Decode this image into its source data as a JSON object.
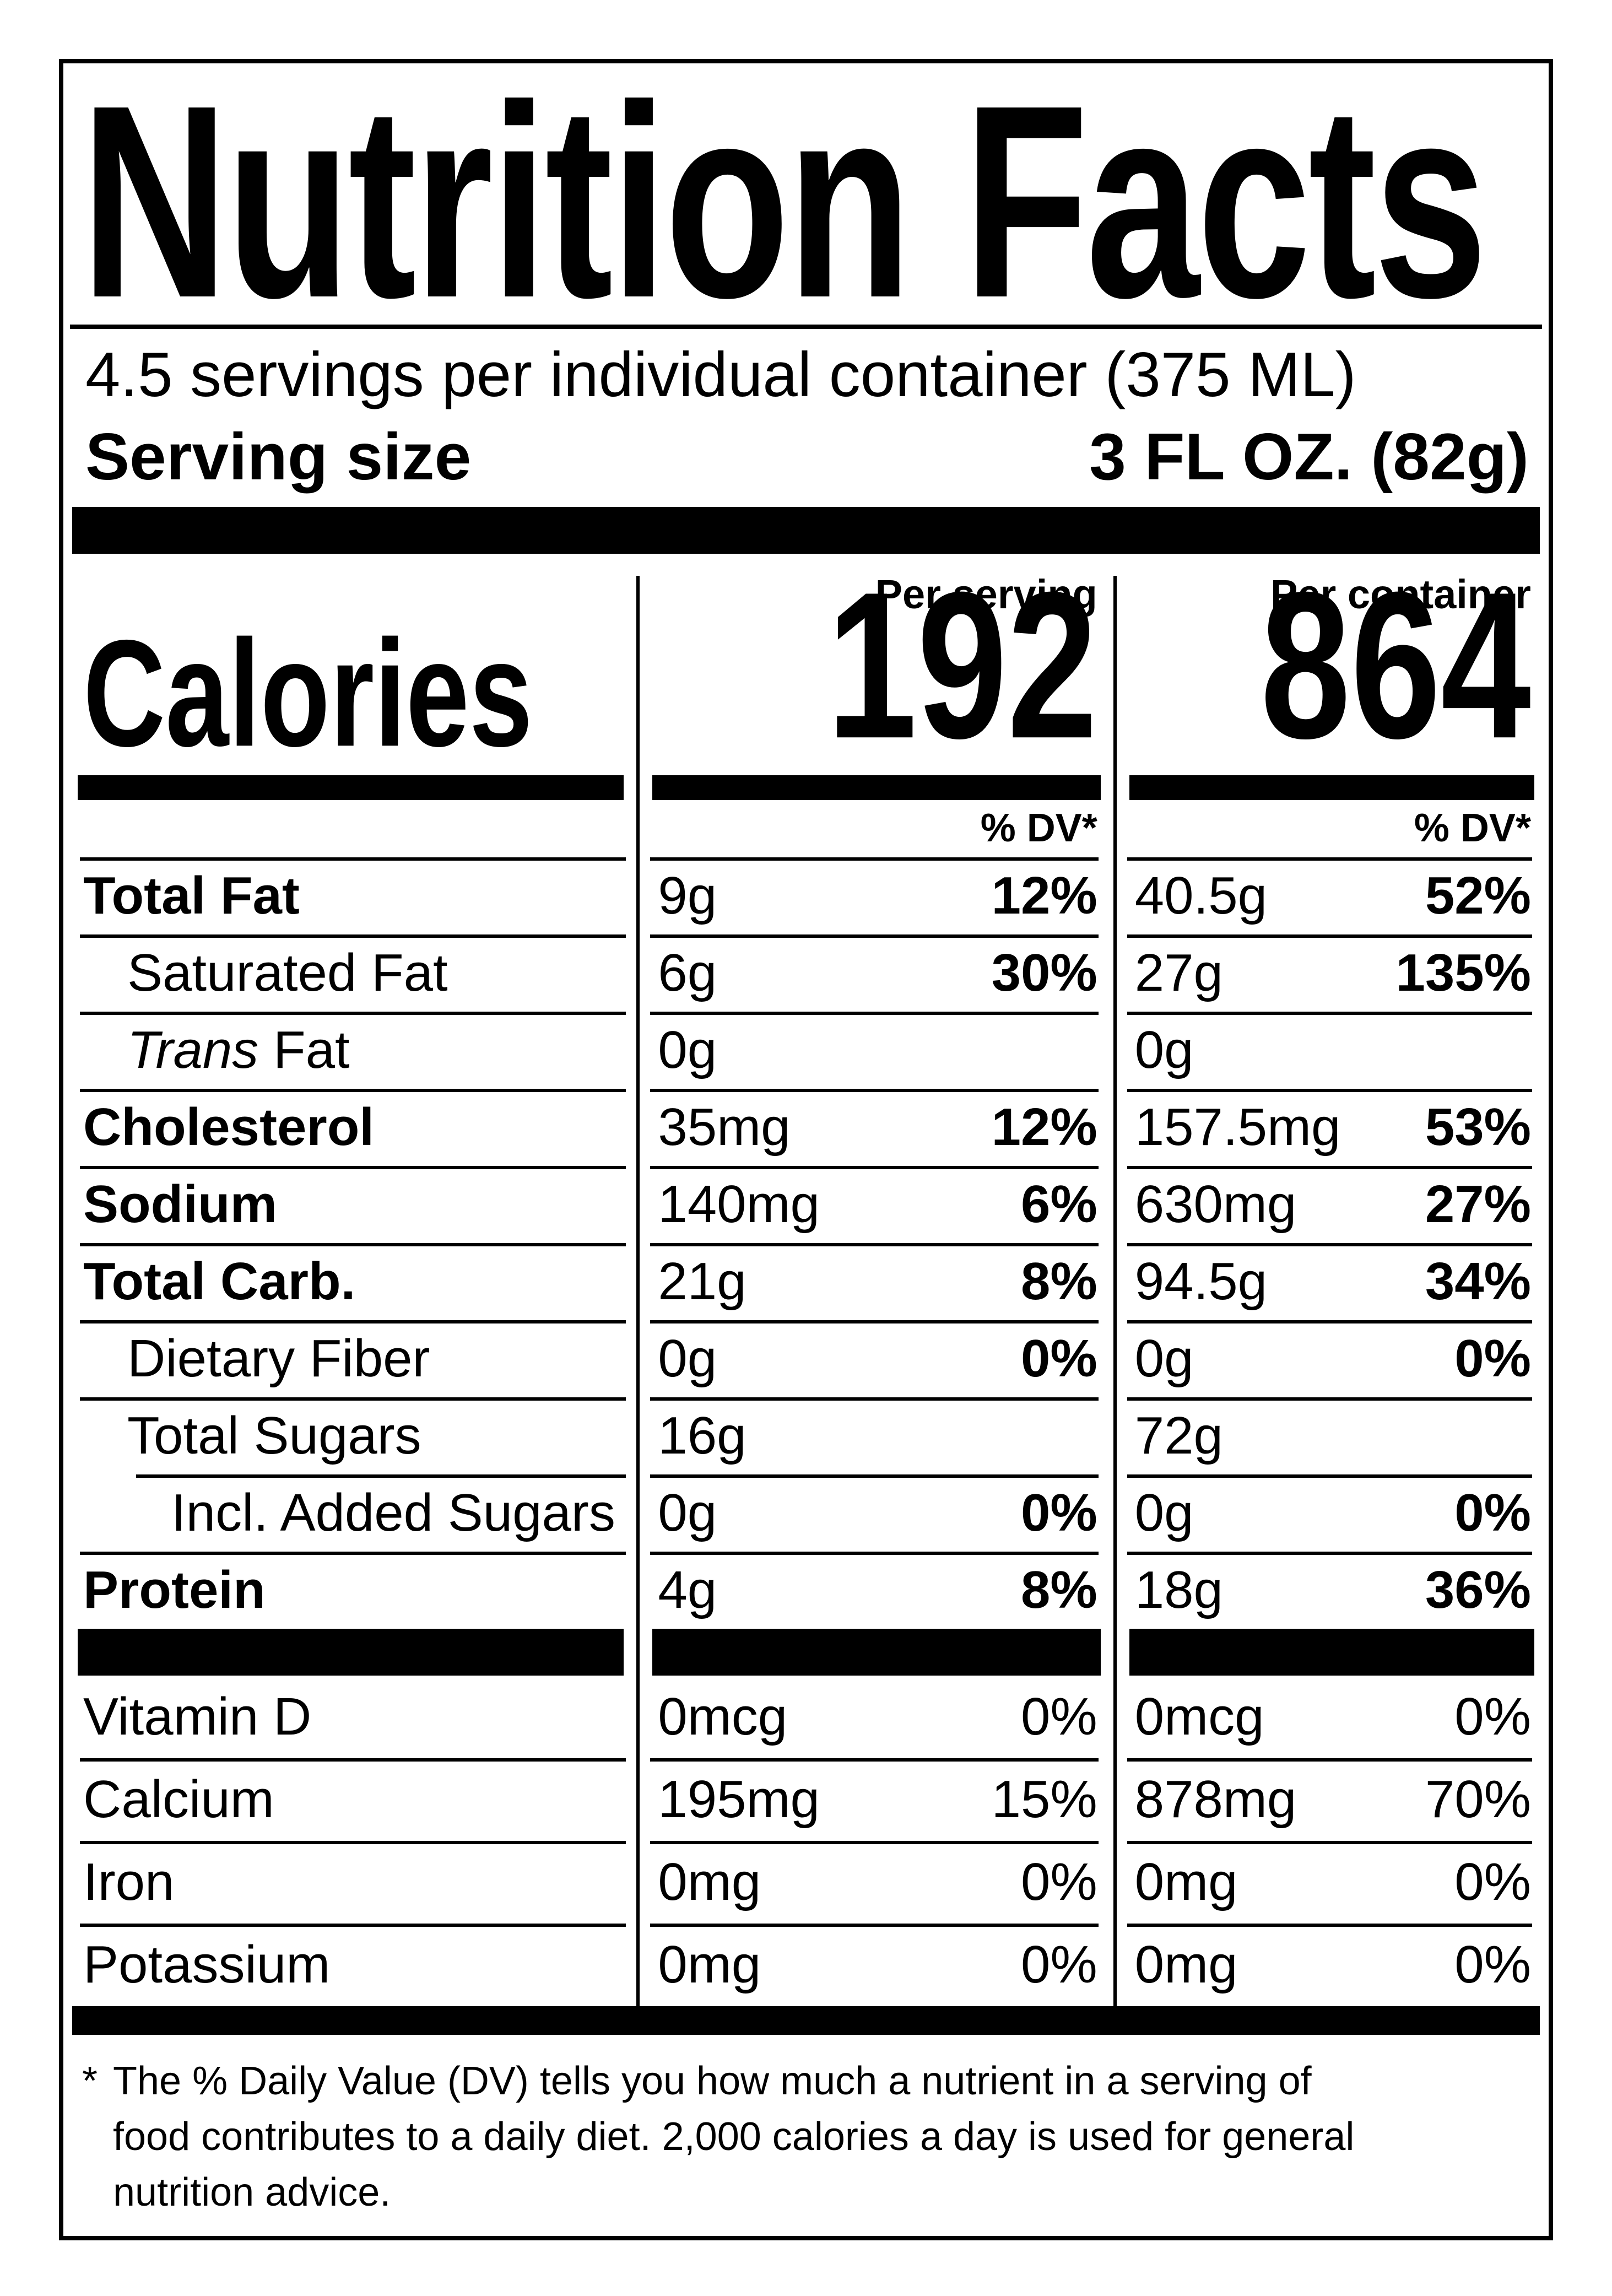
{
  "colors": {
    "ink": "#000000",
    "paper": "#ffffff"
  },
  "title": "Nutrition Facts",
  "servings_per_container": "4.5 servings per individual container (375 ML)",
  "serving_size": {
    "label": "Serving size",
    "value": "3 FL OZ. (82g)"
  },
  "columns": {
    "serving_header": "Per serving",
    "container_header": "Per container",
    "dv_header": "% DV*"
  },
  "calories": {
    "label": "Calories",
    "per_serving": "192",
    "per_container": "864"
  },
  "nutrients": [
    {
      "name": "Total Fat",
      "serving": {
        "amount": "9g",
        "dv": "12%"
      },
      "container": {
        "amount": "40.5g",
        "dv": "52%"
      }
    },
    {
      "name": "Saturated Fat",
      "serving": {
        "amount": "6g",
        "dv": "30%"
      },
      "container": {
        "amount": "27g",
        "dv": "135%"
      }
    },
    {
      "name_italic": "Trans",
      "name": " Fat",
      "serving": {
        "amount": "0g"
      },
      "container": {
        "amount": "0g"
      }
    },
    {
      "name": "Cholesterol",
      "serving": {
        "amount": "35mg",
        "dv": "12%"
      },
      "container": {
        "amount": "157.5mg",
        "dv": "53%"
      }
    },
    {
      "name": "Sodium",
      "serving": {
        "amount": "140mg",
        "dv": "6%"
      },
      "container": {
        "amount": "630mg",
        "dv": "27%"
      }
    },
    {
      "name": "Total Carb.",
      "serving": {
        "amount": "21g",
        "dv": "8%"
      },
      "container": {
        "amount": "94.5g",
        "dv": "34%"
      }
    },
    {
      "name": "Dietary Fiber",
      "serving": {
        "amount": "0g",
        "dv": "0%"
      },
      "container": {
        "amount": "0g",
        "dv": "0%"
      }
    },
    {
      "name": "Total Sugars",
      "serving": {
        "amount": "16g"
      },
      "container": {
        "amount": "72g"
      }
    },
    {
      "name": "Incl. Added Sugars",
      "serving": {
        "amount": "0g",
        "dv": "0%"
      },
      "container": {
        "amount": "0g",
        "dv": "0%"
      }
    },
    {
      "name": "Protein",
      "serving": {
        "amount": "4g",
        "dv": "8%"
      },
      "container": {
        "amount": "18g",
        "dv": "36%"
      }
    }
  ],
  "vitamins": [
    {
      "name": "Vitamin D",
      "serving": {
        "amount": "0mcg",
        "dv": "0%"
      },
      "container": {
        "amount": "0mcg",
        "dv": "0%"
      }
    },
    {
      "name": "Calcium",
      "serving": {
        "amount": "195mg",
        "dv": "15%"
      },
      "container": {
        "amount": "878mg",
        "dv": "70%"
      }
    },
    {
      "name": "Iron",
      "serving": {
        "amount": "0mg",
        "dv": "0%"
      },
      "container": {
        "amount": "0mg",
        "dv": "0%"
      }
    },
    {
      "name": "Potassium",
      "serving": {
        "amount": "0mg",
        "dv": "0%"
      },
      "container": {
        "amount": "0mg",
        "dv": "0%"
      }
    }
  ],
  "footnote": {
    "marker": "*",
    "line1": "The % Daily Value (DV) tells you how much a nutrient in a serving of",
    "line2": "food contributes to a daily diet. 2,000 calories a day is used for general",
    "line3": "nutrition advice.",
    "text": "The % Daily Value (DV) tells you how much a nutrient in a serving of food contributes to a daily diet. 2,000 calories a day is used for general nutrition advice."
  }
}
